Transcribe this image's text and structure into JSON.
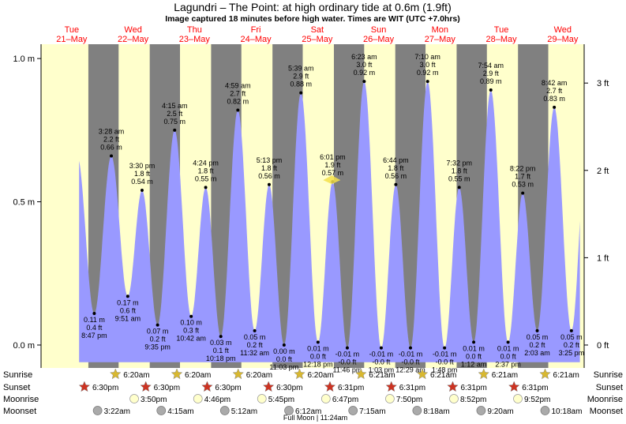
{
  "chart_data": {
    "type": "area",
    "title": "Lagundri – The Point: at high  ordinary tide at 0.6m (1.9ft)",
    "subtitle": "Image captured 18 minutes before high water. Times are WIT (UTC +7.0hrs)",
    "y_left_ticks": [
      {
        "v": 0.0,
        "label": "0.0 m"
      },
      {
        "v": 0.5,
        "label": "0.5 m"
      },
      {
        "v": 1.0,
        "label": "1.0 m"
      }
    ],
    "y_right_ticks": [
      {
        "v": 0.0,
        "label": "0 ft"
      },
      {
        "v": 0.3048,
        "label": "1 ft"
      },
      {
        "v": 0.6096,
        "label": "2 ft"
      },
      {
        "v": 0.9144,
        "label": "3 ft"
      }
    ],
    "ylim": [
      -0.08,
      1.05
    ],
    "xlim": [
      0.0,
      8.85
    ],
    "days": [
      {
        "dow": "Tue",
        "date": "21–May"
      },
      {
        "dow": "Wed",
        "date": "22–May"
      },
      {
        "dow": "Thu",
        "date": "23–May"
      },
      {
        "dow": "Fri",
        "date": "24–May"
      },
      {
        "dow": "Sat",
        "date": "25–May"
      },
      {
        "dow": "Sun",
        "date": "26–May"
      },
      {
        "dow": "Mon",
        "date": "27–May"
      },
      {
        "dow": "Tue",
        "date": "28–May"
      },
      {
        "dow": "Wed",
        "date": "29–May"
      }
    ],
    "extremes": [
      {
        "t": 0.867,
        "h": 0.11,
        "type": "low",
        "labels": [
          "0.11 m",
          "0.4 ft",
          "8:47 pm"
        ]
      },
      {
        "t": 1.145,
        "h": 0.66,
        "type": "high",
        "labels": [
          "3:28 am",
          "2.2 ft",
          "0.66 m"
        ]
      },
      {
        "t": 1.413,
        "h": 0.17,
        "type": "low",
        "labels": [
          "0.17 m",
          "0.6 ft",
          "9:51 am"
        ]
      },
      {
        "t": 1.646,
        "h": 0.54,
        "type": "high",
        "labels": [
          "3:30 pm",
          "1.8 ft",
          "0.54 m"
        ]
      },
      {
        "t": 1.899,
        "h": 0.07,
        "type": "low",
        "labels": [
          "0.07 m",
          "0.2 ft",
          "9:35 pm"
        ]
      },
      {
        "t": 2.177,
        "h": 0.75,
        "type": "high",
        "labels": [
          "4:15 am",
          "2.5 ft",
          "0.75 m"
        ]
      },
      {
        "t": 2.446,
        "h": 0.1,
        "type": "low",
        "labels": [
          "0.10 m",
          "0.3 ft",
          "10:42 am"
        ]
      },
      {
        "t": 2.683,
        "h": 0.55,
        "type": "high",
        "labels": [
          "4:24 pm",
          "1.8 ft",
          "0.55 m"
        ]
      },
      {
        "t": 2.929,
        "h": 0.03,
        "type": "low",
        "labels": [
          "0.03 m",
          "0.1 ft",
          "10:18 pm"
        ]
      },
      {
        "t": 3.207,
        "h": 0.82,
        "type": "high",
        "labels": [
          "4:59 am",
          "2.7 ft",
          "0.82 m"
        ]
      },
      {
        "t": 3.481,
        "h": 0.05,
        "type": "low",
        "labels": [
          "0.05 m",
          "0.2 ft",
          "11:32 am"
        ]
      },
      {
        "t": 3.717,
        "h": 0.56,
        "type": "high",
        "labels": [
          "5:13 pm",
          "1.8 ft",
          "0.56 m"
        ]
      },
      {
        "t": 3.96,
        "h": 0.0,
        "type": "low",
        "labels": [
          "0.00 m",
          "0.0 ft",
          "11:03 pm"
        ]
      },
      {
        "t": 4.235,
        "h": 0.88,
        "type": "high",
        "labels": [
          "5:39 am",
          "2.9 ft",
          "0.88 m"
        ]
      },
      {
        "t": 4.513,
        "h": 0.01,
        "type": "low",
        "labels": [
          "0.01 m",
          "0.0 ft",
          "12:18 pm"
        ]
      },
      {
        "t": 4.751,
        "h": 0.57,
        "type": "high",
        "labels": [
          "6:01 pm",
          "1.9 ft",
          "0.57 m"
        ]
      },
      {
        "t": 4.99,
        "h": -0.01,
        "type": "low",
        "labels": [
          "-0.01 m",
          "-0.0 ft",
          "11:46 pm"
        ]
      },
      {
        "t": 5.266,
        "h": 0.92,
        "type": "high",
        "labels": [
          "6:23 am",
          "3.0 ft",
          "0.92 m"
        ]
      },
      {
        "t": 5.543,
        "h": -0.01,
        "type": "low",
        "labels": [
          "-0.01 m",
          "-0.0 ft",
          "1:03 pm"
        ]
      },
      {
        "t": 5.781,
        "h": 0.56,
        "type": "high",
        "labels": [
          "6:44 pm",
          "1.8 ft",
          "0.56 m"
        ]
      },
      {
        "t": 6.02,
        "h": -0.01,
        "type": "low",
        "labels": [
          "-0.01 m",
          "-0.0 ft",
          "12:29 am"
        ]
      },
      {
        "t": 6.299,
        "h": 0.92,
        "type": "high",
        "labels": [
          "7:10 am",
          "3.0 ft",
          "0.92 m"
        ]
      },
      {
        "t": 6.575,
        "h": -0.01,
        "type": "low",
        "labels": [
          "-0.01 m",
          "-0.0 ft",
          "1:48 pm"
        ]
      },
      {
        "t": 6.814,
        "h": 0.55,
        "type": "high",
        "labels": [
          "7:32 pm",
          "1.8 ft",
          "0.55 m"
        ]
      },
      {
        "t": 7.05,
        "h": 0.01,
        "type": "low",
        "labels": [
          "0.01 m",
          "0.0 ft",
          "1:12 am"
        ]
      },
      {
        "t": 7.329,
        "h": 0.89,
        "type": "high",
        "labels": [
          "7:54 am",
          "2.9 ft",
          "0.89 m"
        ]
      },
      {
        "t": 7.61,
        "h": 0.01,
        "type": "low",
        "labels": [
          "0.01 m",
          "0.0 ft",
          "2:37 pm"
        ]
      },
      {
        "t": 7.849,
        "h": 0.53,
        "type": "high",
        "labels": [
          "8:22 pm",
          "1.7 ft",
          "0.53 m"
        ]
      },
      {
        "t": 8.085,
        "h": 0.05,
        "type": "low",
        "labels": [
          "0.05 m",
          "0.2 ft",
          "2:03 am"
        ]
      },
      {
        "t": 8.363,
        "h": 0.83,
        "type": "high",
        "labels": [
          "8:42 am",
          "2.7 ft",
          "0.83 m"
        ]
      },
      {
        "t": 8.642,
        "h": 0.05,
        "type": "low",
        "labels": [
          "0.05 m",
          "0.2 ft",
          "3:25 pm"
        ]
      }
    ],
    "current": {
      "t": 4.738,
      "h": 0.57
    },
    "sunrise": [
      {
        "t": 1.264,
        "label": "6:20am"
      },
      {
        "t": 2.264,
        "label": "6:20am"
      },
      {
        "t": 3.264,
        "label": "6:20am"
      },
      {
        "t": 4.264,
        "label": "6:20am"
      },
      {
        "t": 5.265,
        "label": "6:21am"
      },
      {
        "t": 6.265,
        "label": "6:21am"
      },
      {
        "t": 7.265,
        "label": "6:21am"
      },
      {
        "t": 8.265,
        "label": "6:21am"
      }
    ],
    "sunset": [
      {
        "t": 0.771,
        "label": "6:30pm"
      },
      {
        "t": 1.771,
        "label": "6:30pm"
      },
      {
        "t": 2.771,
        "label": "6:30pm"
      },
      {
        "t": 3.771,
        "label": "6:30pm"
      },
      {
        "t": 4.772,
        "label": "6:31pm"
      },
      {
        "t": 5.772,
        "label": "6:31pm"
      },
      {
        "t": 6.772,
        "label": "6:31pm"
      },
      {
        "t": 7.772,
        "label": "6:31pm"
      }
    ],
    "moonrise": [
      {
        "t": 1.66,
        "label": "3:50pm"
      },
      {
        "t": 2.698,
        "label": "4:46pm"
      },
      {
        "t": 3.74,
        "label": "5:45pm"
      },
      {
        "t": 4.783,
        "label": "6:47pm"
      },
      {
        "t": 5.826,
        "label": "7:50pm"
      },
      {
        "t": 6.869,
        "label": "8:52pm"
      },
      {
        "t": 7.911,
        "label": "9:52pm"
      }
    ],
    "moonset": [
      {
        "t": 1.14,
        "label": "3:22am"
      },
      {
        "t": 2.177,
        "label": "4:15am"
      },
      {
        "t": 3.213,
        "label": "5:12am"
      },
      {
        "t": 4.258,
        "label": "6:12am"
      },
      {
        "t": 5.302,
        "label": "7:15am"
      },
      {
        "t": 6.346,
        "label": "8:18am"
      },
      {
        "t": 7.389,
        "label": "9:20am"
      },
      {
        "t": 8.432,
        "label": "10:18am"
      }
    ],
    "footer_rows": [
      "Sunrise",
      "Sunset",
      "Moonrise",
      "Moonset"
    ],
    "moon_phase": {
      "t": 4.47,
      "label": "Full Moon | 11:24am"
    },
    "colors": {
      "day": "#ffffcc",
      "night": "#808080",
      "water": "#9999ff",
      "day_label": "#ff0000",
      "sun_star": "#d8b830",
      "sunset_star": "#cc3322",
      "moonrise": "#ffffcc",
      "moonset": "#aaaaaa"
    }
  }
}
